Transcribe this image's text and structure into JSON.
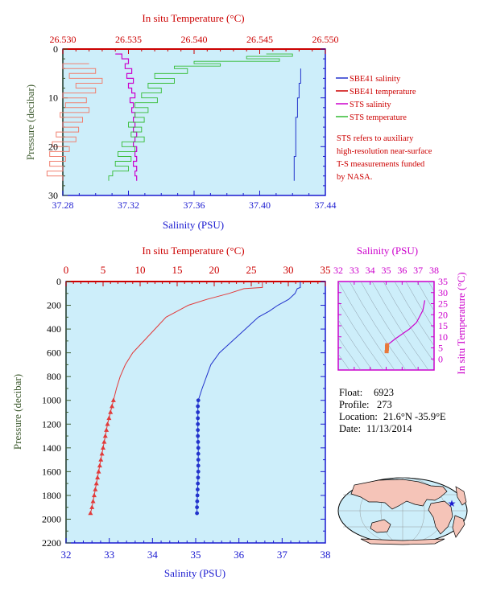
{
  "colors": {
    "plot_bg": "#cdeefa",
    "salinity_axis": "#1a1ad0",
    "temperature_axis": "#cc0000",
    "pressure_axis": "#3d5a2e",
    "magenta": "#cc00cc",
    "sbe41_salinity": "#2233cc",
    "sbe41_temperature": "#e23a3a",
    "sts_salinity": "#cc00cc",
    "sts_temperature": "#33bb33",
    "sts_temperature_salmon": "#f08070",
    "legend_sbe_temp": "#cc0000"
  },
  "chart_data": [
    {
      "type": "line",
      "panel": "near-surface profile",
      "xlabel": "Salinity (PSU)",
      "x2label": "In situ Temperature (°C)",
      "ylabel": "Pressure (decibar)",
      "xlim": [
        37.28,
        37.44
      ],
      "x2lim": [
        26.53,
        26.55
      ],
      "ylim": [
        30,
        0
      ],
      "xticks": [
        "37.28",
        "37.32",
        "37.36",
        "37.40",
        "37.44"
      ],
      "x2ticks": [
        "26.530",
        "26.535",
        "26.540",
        "26.545",
        "26.550"
      ],
      "yticks": [
        "0",
        "10",
        "20",
        "30"
      ],
      "legend_position": "right",
      "legend": [
        {
          "label": "SBE41 salinity"
        },
        {
          "label": "SBE41 temperature"
        },
        {
          "label": "STS salinity"
        },
        {
          "label": "STS temperature"
        }
      ],
      "note": [
        "STS refers to auxiliary",
        "high-resolution near-surface",
        "T-S measurements funded",
        "by NASA."
      ],
      "series": [
        {
          "name": "SBE41 salinity",
          "axis": "salinity",
          "pressure": [
            4,
            7,
            10,
            14,
            18,
            22,
            26,
            27
          ],
          "values": [
            37.425,
            37.425,
            37.424,
            37.423,
            37.422,
            37.422,
            37.421,
            37.421
          ]
        },
        {
          "name": "STS salinity",
          "axis": "salinity",
          "pressure": [
            1,
            2,
            3,
            4,
            5,
            6,
            7,
            8,
            9,
            10,
            11,
            12,
            13,
            14,
            15,
            16,
            17,
            18,
            19,
            20,
            21,
            22,
            23,
            24,
            25,
            26,
            27
          ],
          "values": [
            37.312,
            37.316,
            37.32,
            37.318,
            37.322,
            37.319,
            37.323,
            37.32,
            37.322,
            37.324,
            37.321,
            37.323,
            37.322,
            37.324,
            37.323,
            37.324,
            37.323,
            37.325,
            37.324,
            37.323,
            37.325,
            37.324,
            37.325,
            37.323,
            37.325,
            37.324,
            37.325
          ]
        },
        {
          "name": "STS temperature",
          "axis": "temperature",
          "pressure": [
            1,
            1.5,
            2,
            2.5,
            3,
            3.5,
            4,
            5,
            6,
            7,
            8,
            9,
            10,
            11,
            12,
            13,
            14,
            15,
            16,
            17,
            18,
            19,
            20,
            21,
            22,
            23,
            24,
            25,
            26,
            27
          ],
          "values": [
            26.5455,
            26.5475,
            26.544,
            26.5465,
            26.54,
            26.542,
            26.5385,
            26.5395,
            26.537,
            26.5385,
            26.5365,
            26.5375,
            26.536,
            26.5372,
            26.5355,
            26.5365,
            26.5355,
            26.5362,
            26.535,
            26.536,
            26.5352,
            26.5362,
            26.5345,
            26.5355,
            26.5342,
            26.5352,
            26.534,
            26.535,
            26.5338,
            26.5335
          ]
        },
        {
          "name": "SBE41 temperature",
          "axis": "temperature",
          "pressure": [
            3,
            4,
            5,
            6,
            7,
            8,
            9,
            10,
            11,
            12,
            13,
            14,
            15,
            16,
            17,
            18,
            19,
            20,
            21,
            22,
            23,
            24,
            25,
            26,
            27
          ],
          "values": [
            26.532,
            26.53,
            26.5325,
            26.5305,
            26.533,
            26.531,
            26.5325,
            26.53,
            26.5318,
            26.5302,
            26.532,
            26.5298,
            26.5315,
            26.53,
            26.5312,
            26.5295,
            26.531,
            26.5292,
            26.5305,
            26.529,
            26.5302,
            26.529,
            26.53,
            26.5288,
            26.53
          ]
        }
      ]
    },
    {
      "type": "line",
      "panel": "full-depth profile",
      "xlabel": "Salinity (PSU)",
      "x2label": "In situ Temperature (°C)",
      "ylabel": "Pressure (decibar)",
      "xlim": [
        32,
        38
      ],
      "x2lim": [
        0,
        35
      ],
      "ylim": [
        2200,
        0
      ],
      "xticks": [
        "32",
        "33",
        "34",
        "35",
        "36",
        "37",
        "38"
      ],
      "x2ticks": [
        "0",
        "5",
        "10",
        "15",
        "20",
        "25",
        "30",
        "35"
      ],
      "yticks": [
        "0",
        "200",
        "400",
        "600",
        "800",
        "1000",
        "1200",
        "1400",
        "1600",
        "1800",
        "2000",
        "2200"
      ],
      "series": [
        {
          "name": "Salinity",
          "axis": "salinity",
          "marker": "circle",
          "pressure": [
            0,
            50,
            60,
            100,
            150,
            200,
            250,
            300,
            400,
            500,
            600,
            700,
            800,
            900,
            1000,
            1050,
            1100,
            1150,
            1200,
            1300,
            1400,
            1500,
            1600,
            1700,
            1800,
            1900,
            1950
          ],
          "values": [
            37.42,
            37.42,
            37.35,
            37.3,
            37.15,
            36.9,
            36.7,
            36.45,
            36.15,
            35.85,
            35.55,
            35.35,
            35.25,
            35.15,
            35.06,
            35.05,
            35.05,
            35.05,
            35.05,
            35.05,
            35.06,
            35.06,
            35.06,
            35.05,
            35.04,
            35.03,
            35.03
          ]
        },
        {
          "name": "Temperature",
          "axis": "temperature",
          "marker": "triangle",
          "pressure": [
            0,
            50,
            60,
            100,
            150,
            200,
            250,
            300,
            400,
            500,
            600,
            700,
            800,
            900,
            1000,
            1050,
            1100,
            1150,
            1200,
            1300,
            1400,
            1500,
            1600,
            1700,
            1800,
            1900,
            1950
          ],
          "values": [
            26.5,
            26.5,
            24.0,
            22.0,
            19.0,
            16.5,
            15.0,
            13.5,
            12.0,
            10.5,
            9.0,
            8.0,
            7.3,
            6.8,
            6.4,
            6.2,
            6.0,
            5.8,
            5.6,
            5.3,
            5.0,
            4.7,
            4.4,
            4.1,
            3.8,
            3.5,
            3.3
          ]
        }
      ]
    },
    {
      "type": "line",
      "panel": "T-S diagram",
      "xlabel": "Salinity (PSU)",
      "ylabel": "In situ Temperature (°C)",
      "xlim": [
        32,
        38
      ],
      "ylim": [
        -5,
        35
      ],
      "xticks": [
        "32",
        "33",
        "34",
        "35",
        "36",
        "37",
        "38"
      ],
      "yticks": [
        "0",
        "5",
        "10",
        "15",
        "20",
        "25",
        "30",
        "35"
      ],
      "series": [
        {
          "name": "T-S",
          "x": [
            37.42,
            37.3,
            36.9,
            36.45,
            36.15,
            35.85,
            35.55,
            35.25,
            35.06,
            35.05,
            35.05,
            35.03
          ],
          "y": [
            26.5,
            22.0,
            16.5,
            13.5,
            12.0,
            10.5,
            9.0,
            7.3,
            6.4,
            5.6,
            4.4,
            3.3
          ]
        }
      ]
    }
  ],
  "info": {
    "float_label": "Float:",
    "float_value": "6923",
    "profile_label": "Profile:",
    "profile_value": "273",
    "location_label": "Location:",
    "location_value": "21.6°N  -35.9°E",
    "date_label": "Date:",
    "date_value": "11/13/2014"
  },
  "map": {
    "float_lat": 21.6,
    "float_lon": -35.9,
    "marker_color": "#1a1ad0"
  }
}
